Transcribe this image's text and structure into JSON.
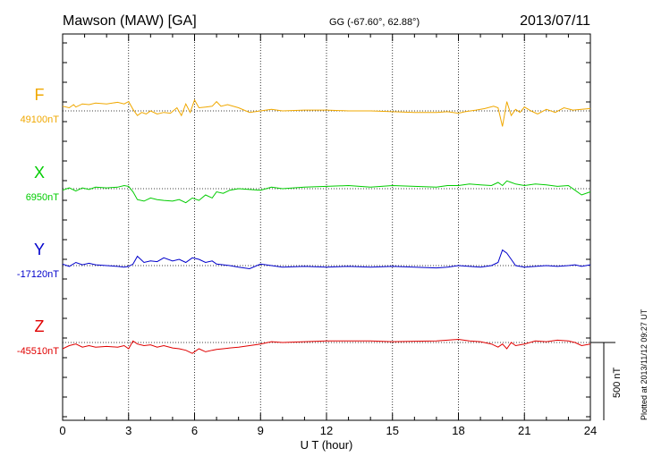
{
  "chart_data": {
    "type": "line",
    "title": "Mawson (MAW)  [GA]",
    "coords": "GG (-67.60°,  62.88°)",
    "date": "2013/07/11",
    "xlabel": "U T (hour)",
    "xlim": [
      0,
      24
    ],
    "xticks": [
      "0",
      "3",
      "6",
      "9",
      "12",
      "15",
      "18",
      "21",
      "24"
    ],
    "scale_label": "500 nT",
    "scale_nT": 500,
    "plotted_note": "Plotted at 2013/11/12 09:27 UT",
    "grid": true,
    "series": [
      {
        "name": "F",
        "baseline_label": "49100nT",
        "color": "#f0a800",
        "x": [
          0,
          0.3,
          0.5,
          0.6,
          0.9,
          1.2,
          1.5,
          2,
          2.5,
          2.8,
          3.0,
          3.2,
          3.4,
          3.6,
          3.8,
          4.0,
          4.3,
          4.6,
          4.9,
          5.2,
          5.4,
          5.6,
          5.8,
          6.0,
          6.2,
          6.5,
          6.8,
          7.0,
          7.2,
          7.5,
          8,
          8.5,
          9,
          9.5,
          10,
          11,
          12,
          13,
          14,
          15,
          16,
          17,
          17.5,
          18,
          18.3,
          18.8,
          19.2,
          19.6,
          19.8,
          20.0,
          20.2,
          20.4,
          20.6,
          20.8,
          21.0,
          21.3,
          21.6,
          22,
          22.4,
          22.8,
          23.2,
          23.6,
          24
        ],
        "values": [
          30,
          20,
          40,
          25,
          45,
          40,
          50,
          45,
          55,
          45,
          60,
          10,
          -30,
          -10,
          -20,
          0,
          -20,
          -10,
          -15,
          20,
          -30,
          45,
          -10,
          70,
          20,
          25,
          30,
          60,
          30,
          40,
          20,
          -10,
          0,
          10,
          0,
          5,
          5,
          0,
          0,
          -5,
          -10,
          -10,
          -5,
          -15,
          -5,
          5,
          15,
          30,
          20,
          -100,
          60,
          -30,
          10,
          -10,
          25,
          0,
          -20,
          10,
          -10,
          20,
          5,
          10,
          15
        ]
      },
      {
        "name": "X",
        "baseline_label": "6950nT",
        "color": "#00cc00",
        "x": [
          0,
          0.3,
          0.6,
          0.9,
          1.2,
          1.5,
          2,
          2.5,
          2.8,
          3.0,
          3.2,
          3.4,
          3.7,
          4.0,
          4.3,
          4.6,
          5.0,
          5.3,
          5.6,
          5.9,
          6.2,
          6.5,
          6.8,
          7.0,
          7.3,
          7.6,
          8,
          8.5,
          9,
          9.5,
          10,
          11,
          12,
          13,
          14,
          15,
          16,
          17,
          17.5,
          18,
          18.5,
          19,
          19.5,
          19.8,
          20.0,
          20.2,
          20.4,
          20.6,
          21,
          21.5,
          22,
          22.5,
          23,
          23.3,
          23.6,
          24
        ],
        "values": [
          -10,
          5,
          -15,
          5,
          -5,
          10,
          5,
          10,
          20,
          15,
          -20,
          -70,
          -80,
          -60,
          -70,
          -75,
          -80,
          -70,
          -90,
          -60,
          -75,
          -40,
          -60,
          -20,
          -30,
          -10,
          0,
          -5,
          -10,
          10,
          0,
          10,
          15,
          20,
          10,
          20,
          15,
          10,
          20,
          20,
          30,
          25,
          20,
          40,
          20,
          50,
          40,
          30,
          20,
          30,
          25,
          15,
          20,
          -10,
          -40,
          -20
        ]
      },
      {
        "name": "Y",
        "baseline_label": "-17120nT",
        "color": "#0000cc",
        "x": [
          0,
          0.3,
          0.6,
          0.9,
          1.2,
          1.5,
          2,
          2.5,
          2.8,
          3.0,
          3.2,
          3.4,
          3.7,
          4.0,
          4.3,
          4.6,
          5.0,
          5.3,
          5.6,
          5.9,
          6.2,
          6.5,
          6.8,
          7.0,
          7.3,
          7.6,
          8,
          8.5,
          9,
          9.5,
          10,
          11,
          12,
          13,
          14,
          15,
          16,
          17,
          17.5,
          18,
          18.5,
          19,
          19.5,
          19.8,
          20.0,
          20.2,
          20.4,
          20.6,
          21,
          21.5,
          22,
          22.5,
          23,
          23.3,
          23.6,
          24
        ],
        "values": [
          10,
          -5,
          20,
          5,
          15,
          5,
          0,
          -5,
          -10,
          -5,
          10,
          60,
          20,
          30,
          25,
          50,
          30,
          40,
          20,
          50,
          40,
          20,
          30,
          10,
          5,
          0,
          -10,
          -20,
          10,
          0,
          -10,
          -5,
          -10,
          -5,
          -10,
          -5,
          -10,
          -15,
          -10,
          0,
          -5,
          -10,
          0,
          20,
          100,
          80,
          40,
          0,
          -10,
          -5,
          0,
          -5,
          0,
          5,
          -5,
          5
        ]
      },
      {
        "name": "Z",
        "baseline_label": "-45510nT",
        "color": "#e00000",
        "x": [
          0,
          0.3,
          0.6,
          0.9,
          1.2,
          1.5,
          2,
          2.5,
          2.8,
          3.0,
          3.2,
          3.4,
          3.7,
          4.0,
          4.3,
          4.6,
          5.0,
          5.3,
          5.6,
          5.9,
          6.2,
          6.5,
          6.8,
          7.0,
          7.3,
          7.6,
          8,
          8.5,
          9,
          9.5,
          10,
          11,
          12,
          13,
          14,
          15,
          16,
          17,
          17.5,
          18,
          18.5,
          19,
          19.5,
          19.8,
          20.0,
          20.2,
          20.4,
          20.6,
          21,
          21.5,
          22,
          22.5,
          23,
          23.3,
          23.6,
          24
        ],
        "values": [
          -40,
          -20,
          -10,
          -30,
          -20,
          -30,
          -25,
          -30,
          -20,
          -40,
          10,
          -10,
          -20,
          -15,
          -30,
          -20,
          -35,
          -40,
          -50,
          -70,
          -40,
          -60,
          -50,
          -45,
          -40,
          -35,
          -30,
          -20,
          -10,
          5,
          0,
          5,
          10,
          10,
          10,
          5,
          8,
          10,
          15,
          20,
          10,
          5,
          -10,
          -30,
          -10,
          -40,
          0,
          -20,
          -10,
          10,
          5,
          15,
          10,
          0,
          -20,
          -10
        ]
      }
    ]
  }
}
